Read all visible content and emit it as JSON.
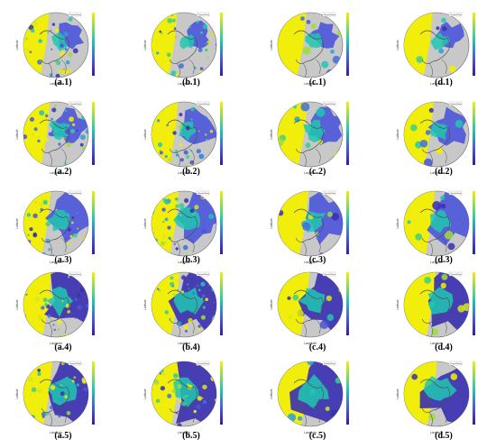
{
  "figure": {
    "colorbar": {
      "top_color": "#f2f000",
      "mid_color": "#21c7b0",
      "low_color": "#4b55d8",
      "bottom_color": "#2e1f9f"
    },
    "map": {
      "background": "#c8c8c8",
      "edge": "#666666",
      "coast_color": "#4c4c4c",
      "title_tag": "Rainfall Rate",
      "xlabel": "Longitude",
      "ylabel": "Latitude"
    },
    "panels": [
      {
        "caption": "(a.1)",
        "row": 1,
        "col": "a"
      },
      {
        "caption": "(b.1)",
        "row": 1,
        "col": "b"
      },
      {
        "caption": "(c.1)",
        "row": 1,
        "col": "c"
      },
      {
        "caption": "(d.1)",
        "row": 1,
        "col": "d"
      },
      {
        "caption": "(a.2)",
        "row": 2,
        "col": "a"
      },
      {
        "caption": "(b.2)",
        "row": 2,
        "col": "b"
      },
      {
        "caption": "(c.2)",
        "row": 2,
        "col": "c"
      },
      {
        "caption": "(d.2)",
        "row": 2,
        "col": "d"
      },
      {
        "caption": "(a.3)",
        "row": 3,
        "col": "a"
      },
      {
        "caption": "(b.3)",
        "row": 3,
        "col": "b"
      },
      {
        "caption": "(c.3)",
        "row": 3,
        "col": "c"
      },
      {
        "caption": "(d.3)",
        "row": 3,
        "col": "d"
      },
      {
        "caption": "(a.4)",
        "row": 4,
        "col": "a"
      },
      {
        "caption": "(b.4)",
        "row": 4,
        "col": "b"
      },
      {
        "caption": "(c.4)",
        "row": 4,
        "col": "c"
      },
      {
        "caption": "(d.4)",
        "row": 4,
        "col": "d"
      },
      {
        "caption": "(a.5)",
        "row": 5,
        "col": "a"
      },
      {
        "caption": "(b.5)",
        "row": 5,
        "col": "b"
      },
      {
        "caption": "(c.5)",
        "row": 5,
        "col": "c"
      },
      {
        "caption": "(d.5)",
        "row": 5,
        "col": "d"
      }
    ]
  }
}
